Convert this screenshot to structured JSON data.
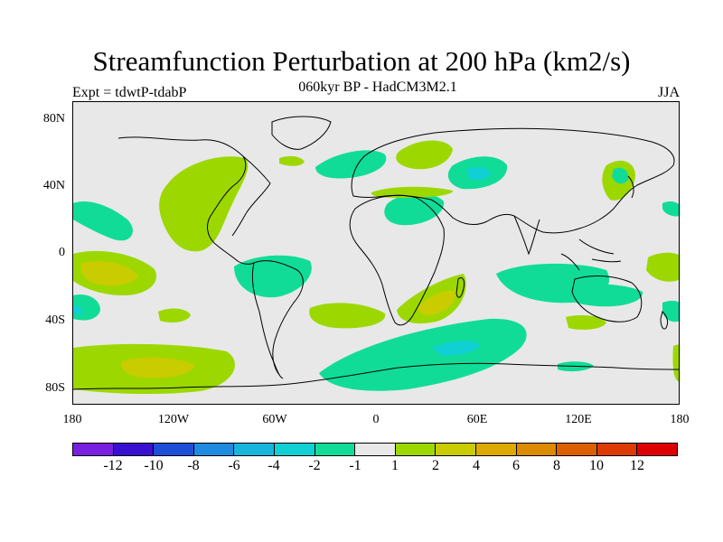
{
  "title": "Streamfunction Perturbation at 200 hPa (km2/s)",
  "subtitle": "060kyr BP - HadCM3M2.1",
  "left_label": "Expt = tdwtP-tdabP",
  "right_label": "JJA",
  "axes": {
    "y_ticks": [
      "80N",
      "40N",
      "0",
      "40S",
      "80S"
    ],
    "x_ticks": [
      "180",
      "120W",
      "60W",
      "0",
      "60E",
      "120E",
      "180"
    ]
  },
  "colorbar": {
    "colors": [
      "#7a1fe0",
      "#3a10d0",
      "#1e4ed8",
      "#1e8ae0",
      "#18b4dc",
      "#10d0d4",
      "#10dc98",
      "#e8e8e8",
      "#9cd800",
      "#c8cc00",
      "#dcaa00",
      "#dc8a00",
      "#dc6000",
      "#dc3a00",
      "#dc0000"
    ],
    "labels": [
      "-12",
      "-10",
      "-8",
      "-6",
      "-4",
      "-2",
      "-1",
      "1",
      "2",
      "4",
      "6",
      "8",
      "10",
      "12"
    ]
  },
  "map_colors": {
    "ocean_bg": "#e8e8e8",
    "neg_light": "#10dc98",
    "neg_mid": "#10d0d4",
    "pos_light": "#9cd800",
    "pos_mid": "#c8cc00",
    "pos_strong": "#dcaa00"
  }
}
